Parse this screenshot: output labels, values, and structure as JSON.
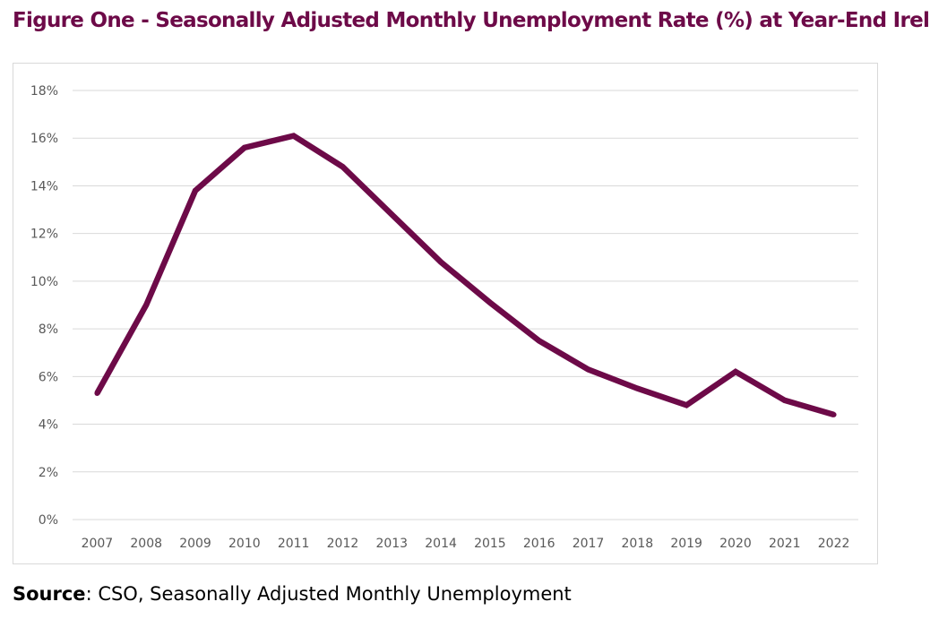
{
  "title": "Figure One - Seasonally Adjusted Monthly Unemployment Rate (%) at Year-End Ireland",
  "source": {
    "label": "Source",
    "text": ": CSO, Seasonally Adjusted Monthly Unemployment"
  },
  "colors": {
    "title": "#6d0a48",
    "line": "#6d0a48",
    "grid": "#d9d9d9",
    "tick": "#595959"
  },
  "chart_data": {
    "type": "line",
    "title": "Figure One - Seasonally Adjusted Monthly Unemployment Rate (%) at Year-End Ireland",
    "xlabel": "",
    "ylabel": "",
    "categories": [
      "2007",
      "2008",
      "2009",
      "2010",
      "2011",
      "2012",
      "2013",
      "2014",
      "2015",
      "2016",
      "2017",
      "2018",
      "2019",
      "2020",
      "2021",
      "2022"
    ],
    "series": [
      {
        "values": [
          5.3,
          9.0,
          13.8,
          15.6,
          16.1,
          14.8,
          12.8,
          10.8,
          9.1,
          7.5,
          6.3,
          5.5,
          4.8,
          6.2,
          5.0,
          4.4
        ]
      }
    ],
    "ylim": [
      0,
      18
    ],
    "yticks": [
      0,
      2,
      4,
      6,
      8,
      10,
      12,
      14,
      16,
      18
    ],
    "ytick_labels": [
      "0%",
      "2%",
      "4%",
      "6%",
      "8%",
      "10%",
      "12%",
      "14%",
      "16%",
      "18%"
    ],
    "grid": true,
    "legend": "none"
  }
}
